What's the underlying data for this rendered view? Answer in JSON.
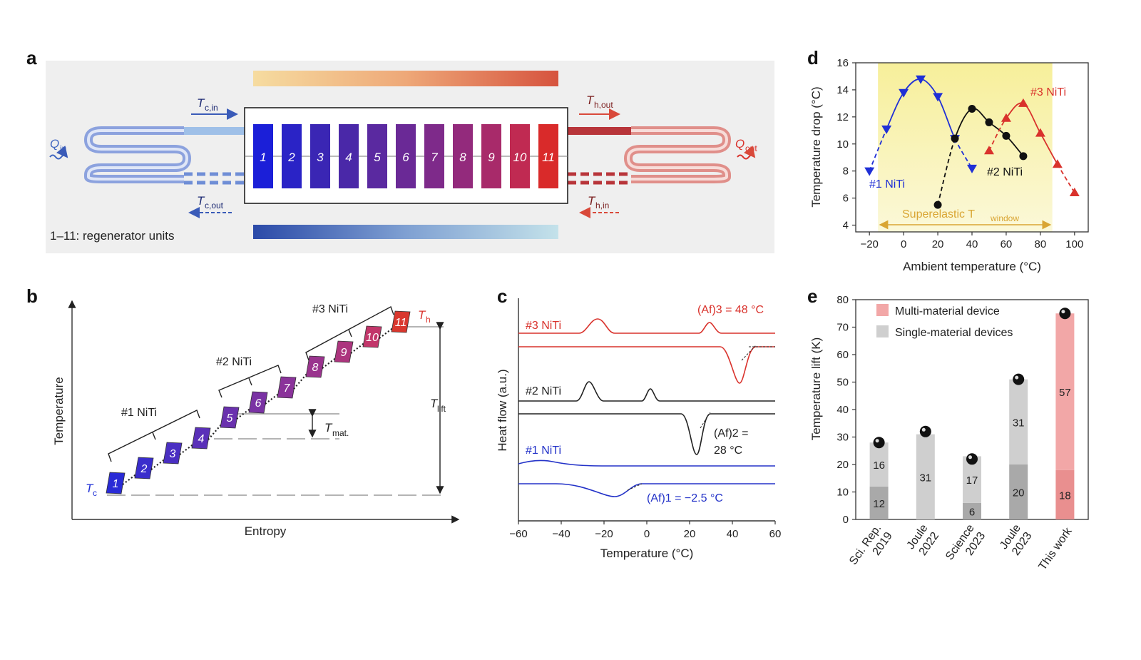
{
  "colors": {
    "blue": "#1f2fd6",
    "red": "#d9322c",
    "gold": "#e0a83a",
    "gray": "#cfcfcf",
    "dark_gray": "#a9a9a9",
    "pink": "#f2a7a7",
    "pink_dark": "#e98f8f"
  },
  "panel_a": {
    "label": "a",
    "q_in": "Q",
    "q_in_sub": "in",
    "q_out": "Q",
    "q_out_sub": "out",
    "tc_in": "T",
    "tc_in_sub": "c,in",
    "tc_out": "T",
    "tc_out_sub": "c,out",
    "th_out": "T",
    "th_out_sub": "h,out",
    "th_in": "T",
    "th_in_sub": "h,in",
    "units": [
      "1",
      "2",
      "3",
      "4",
      "5",
      "6",
      "7",
      "8",
      "9",
      "10",
      "11"
    ],
    "unit_colors": [
      "#1b1fd8",
      "#2a23c6",
      "#3a26b4",
      "#4a28a8",
      "#5a29a0",
      "#6a2996",
      "#7e2a8a",
      "#932a7c",
      "#a82a6a",
      "#c02a52",
      "#d92a2a"
    ],
    "caption": "1–11: regenerator units"
  },
  "panel_b": {
    "label": "b",
    "ylabel": "Temperature",
    "xlabel": "Entropy",
    "group1": "#1 NiTi",
    "group2": "#2 NiTi",
    "group3": "#3 NiTi",
    "tc": "T",
    "tc_sub": "c",
    "th": "T",
    "th_sub": "h",
    "tlift": "T",
    "tlift_sub": "lift",
    "tmat": "T",
    "tmat_sub": "mat.",
    "units": [
      "1",
      "2",
      "3",
      "4",
      "5",
      "6",
      "7",
      "8",
      "9",
      "10",
      "11"
    ],
    "unit_colors": [
      "#2a2bd6",
      "#3a2dcc",
      "#4a2fc2",
      "#5a30b8",
      "#6a31ae",
      "#7a32a4",
      "#8a339a",
      "#9a348e",
      "#ac357e",
      "#c2366a",
      "#d9372e"
    ]
  },
  "panel_c": {
    "label": "c",
    "ylabel": "Heat flow (a.u.)",
    "xlabel": "Temperature (°C)",
    "xticks": [
      "−60",
      "−40",
      "−20",
      "0",
      "20",
      "40",
      "60"
    ],
    "series": [
      {
        "name": "#3 NiTi",
        "annotation": "(Af)3 = 48 °C"
      },
      {
        "name": "#2 NiTi",
        "annotation_line1": "(Af)2 =",
        "annotation_line2": "28 °C"
      },
      {
        "name": "#1 NiTi",
        "annotation": "(Af)1 = −2.5 °C"
      }
    ]
  },
  "panel_d": {
    "label": "d",
    "ylabel": "Temperature drop (°C)",
    "xlabel": "Ambient temperature (°C)",
    "window_label": "Superelastic T",
    "window_sub": "window"
  },
  "panel_e": {
    "label": "e",
    "ylabel": "Temperature lift (K)",
    "legend_multi": "Multi-material device",
    "legend_single": "Single-material devices"
  },
  "chart_data": [
    {
      "type": "line",
      "panel": "d",
      "xlabel": "Ambient temperature (°C)",
      "ylabel": "Temperature drop (°C)",
      "xlim": [
        -28,
        108
      ],
      "ylim": [
        3.5,
        16
      ],
      "xticks": [
        -20,
        0,
        20,
        40,
        60,
        80,
        100
      ],
      "yticks": [
        4,
        6,
        8,
        10,
        12,
        14,
        16
      ],
      "window": [
        -15,
        87
      ],
      "series": [
        {
          "name": "#1 NiTi",
          "marker": "triangle-down",
          "color": "#1f2fd6",
          "x": [
            -20,
            -10,
            0,
            10,
            20,
            30,
            40
          ],
          "y": [
            8.0,
            11.1,
            13.8,
            14.8,
            13.5,
            10.4,
            8.2
          ]
        },
        {
          "name": "#2 NiTi",
          "marker": "circle",
          "color": "#111111",
          "x": [
            20,
            30,
            40,
            50,
            60,
            70
          ],
          "y": [
            5.5,
            10.4,
            12.6,
            11.6,
            10.6,
            9.1
          ]
        },
        {
          "name": "#3 NiTi",
          "marker": "triangle-up",
          "color": "#d9322c",
          "x": [
            50,
            60,
            70,
            80,
            90,
            100
          ],
          "y": [
            9.5,
            11.9,
            13.0,
            10.8,
            8.5,
            6.4
          ]
        }
      ]
    },
    {
      "type": "bar",
      "panel": "e",
      "ylabel": "Temperature lift (K)",
      "ylim": [
        0,
        80
      ],
      "yticks": [
        0,
        10,
        20,
        30,
        40,
        50,
        60,
        70,
        80
      ],
      "categories": [
        "Sci. Rep.\n2019",
        "Joule\n2022",
        "Science\n2023",
        "Joule\n2023",
        "This work"
      ],
      "bottom": [
        12,
        0,
        6,
        20,
        18
      ],
      "top": [
        16,
        31,
        17,
        31,
        57
      ],
      "total": [
        28,
        32,
        22,
        51,
        75
      ],
      "labels_bottom": [
        "12",
        "",
        "6",
        "20",
        "18"
      ],
      "labels_top": [
        "16",
        "31",
        "17",
        "31",
        "57"
      ],
      "kind": [
        "single",
        "single",
        "single",
        "single",
        "multi"
      ]
    },
    {
      "type": "line",
      "panel": "c",
      "xlabel": "Temperature (°C)",
      "ylabel": "Heat flow (a.u.)",
      "xlim": [
        -60,
        60
      ],
      "xticks": [
        -60,
        -40,
        -20,
        0,
        20,
        40,
        60
      ]
    }
  ]
}
